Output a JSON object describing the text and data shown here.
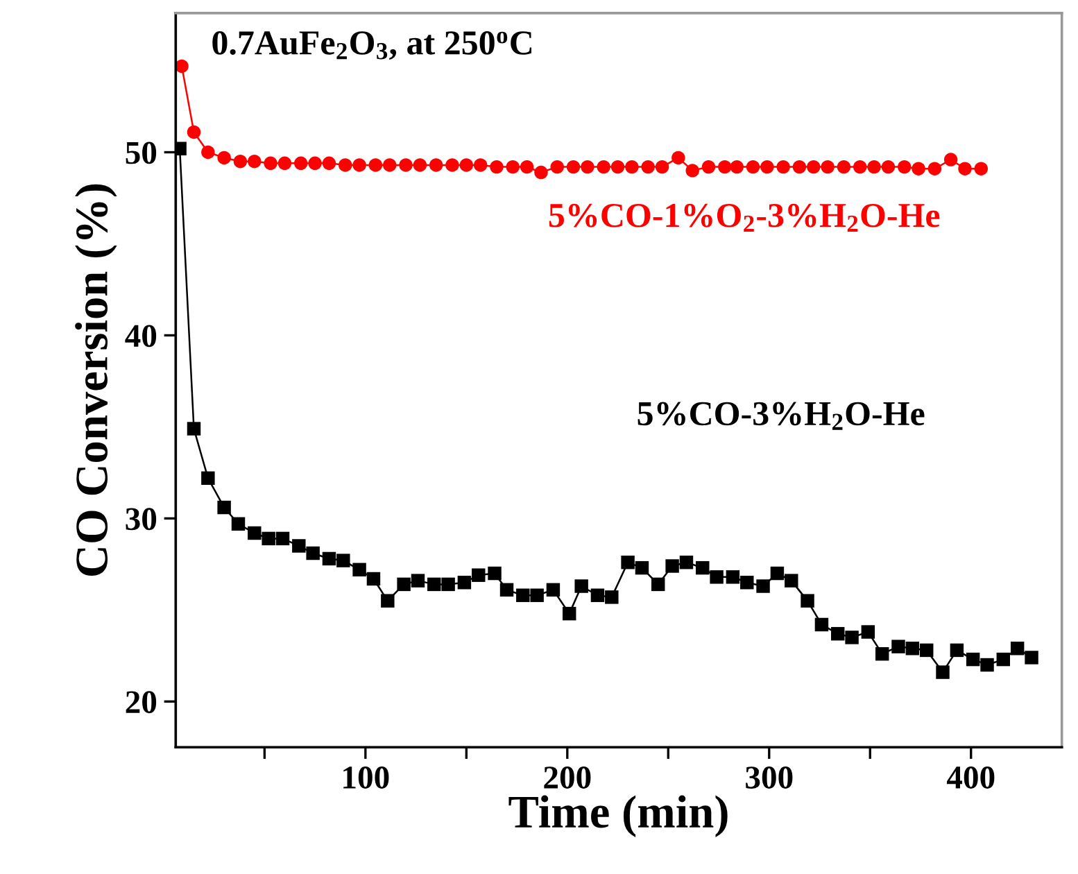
{
  "chart_data": {
    "type": "line",
    "xlabel": "Time (min)",
    "ylabel": "CO Conversion (%)",
    "xlim": [
      6,
      445
    ],
    "xticks": [
      {
        "value": 50,
        "label": null
      },
      100,
      {
        "value": 150,
        "label": null
      },
      200,
      {
        "value": 250,
        "label": null
      },
      300,
      {
        "value": 350,
        "label": null
      },
      400
    ],
    "ylim": [
      17.5,
      57.6
    ],
    "yticks": [
      20,
      30,
      40,
      50
    ],
    "grid": false,
    "legend": false,
    "annotations": [
      "0.7AuFe$_{2}$O$_{3}$, at 250$^{o}$C"
    ],
    "series": [
      {
        "name": "5%CO-1%O$_{2}$-3%H$_{2}$O-He",
        "color": "#ff0000",
        "marker": "circle",
        "x": [
          9,
          15,
          22,
          30,
          38,
          45,
          53,
          60,
          68,
          75,
          82,
          90,
          97,
          105,
          112,
          120,
          127,
          135,
          143,
          150,
          157,
          165,
          173,
          180,
          187,
          195,
          203,
          210,
          218,
          225,
          232,
          240,
          247,
          255,
          262,
          270,
          278,
          284,
          292,
          299,
          307,
          315,
          322,
          329,
          337,
          345,
          352,
          359,
          367,
          374,
          382,
          390,
          397,
          405
        ],
        "values": [
          54.7,
          51.1,
          50.0,
          49.7,
          49.5,
          49.5,
          49.4,
          49.4,
          49.4,
          49.4,
          49.4,
          49.3,
          49.3,
          49.3,
          49.3,
          49.3,
          49.3,
          49.3,
          49.3,
          49.3,
          49.3,
          49.2,
          49.2,
          49.2,
          48.9,
          49.2,
          49.2,
          49.2,
          49.2,
          49.2,
          49.2,
          49.2,
          49.2,
          49.7,
          49.0,
          49.2,
          49.2,
          49.2,
          49.2,
          49.2,
          49.2,
          49.2,
          49.2,
          49.2,
          49.2,
          49.2,
          49.2,
          49.2,
          49.2,
          49.1,
          49.1,
          49.6,
          49.1,
          49.1
        ]
      },
      {
        "name": "5%CO-3%H$_{2}$O-He",
        "color": "#000000",
        "marker": "square",
        "x": [
          8,
          15,
          22,
          30,
          37,
          45,
          52,
          59,
          67,
          74,
          82,
          89,
          97,
          104,
          111,
          119,
          126,
          134,
          141,
          149,
          156,
          164,
          170,
          178,
          185,
          193,
          201,
          207,
          215,
          222,
          230,
          237,
          245,
          252,
          259,
          267,
          274,
          282,
          289,
          297,
          304,
          311,
          319,
          326,
          334,
          341,
          349,
          356,
          364,
          371,
          378,
          386,
          393,
          401,
          408,
          416,
          423,
          430
        ],
        "values": [
          50.2,
          34.9,
          32.2,
          30.6,
          29.7,
          29.2,
          28.9,
          28.9,
          28.5,
          28.1,
          27.8,
          27.7,
          27.2,
          26.7,
          25.5,
          26.4,
          26.6,
          26.4,
          26.4,
          26.5,
          26.9,
          27.0,
          26.1,
          25.8,
          25.8,
          26.1,
          24.8,
          26.3,
          25.8,
          25.7,
          27.6,
          27.3,
          26.4,
          27.4,
          27.6,
          27.3,
          26.8,
          26.8,
          26.5,
          26.3,
          27.0,
          26.6,
          25.5,
          24.2,
          23.7,
          23.5,
          23.8,
          22.6,
          23.0,
          22.9,
          22.8,
          21.6,
          22.8,
          22.3,
          22.0,
          22.3,
          22.9,
          22.4
        ]
      }
    ]
  }
}
